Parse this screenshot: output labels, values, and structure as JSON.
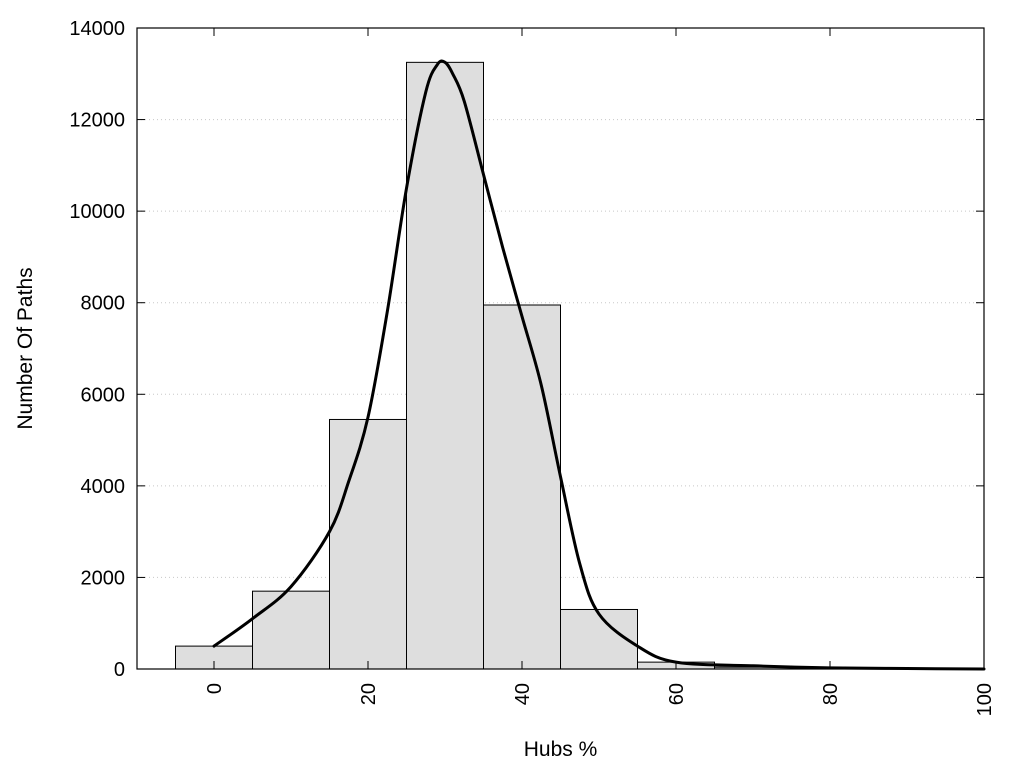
{
  "chart_data": {
    "type": "bar",
    "title": "",
    "xlabel": "Hubs %",
    "ylabel": "Number Of Paths",
    "xlim": [
      -10,
      100
    ],
    "ylim": [
      0,
      14000
    ],
    "grid": {
      "y": true,
      "x": false,
      "style": "dotted"
    },
    "x_ticks": [
      0,
      20,
      40,
      60,
      80,
      100
    ],
    "x_tick_labels": [
      "0",
      "20",
      "40",
      "60",
      "80",
      "100"
    ],
    "y_ticks": [
      0,
      2000,
      4000,
      6000,
      8000,
      10000,
      12000,
      14000
    ],
    "y_tick_labels": [
      "0",
      "2000",
      "4000",
      "6000",
      "8000",
      "10000",
      "12000",
      "14000"
    ],
    "bin_width": 10,
    "bins": [
      {
        "center": 0,
        "count": 500
      },
      {
        "center": 10,
        "count": 1700
      },
      {
        "center": 20,
        "count": 5450
      },
      {
        "center": 30,
        "count": 13250
      },
      {
        "center": 40,
        "count": 7950
      },
      {
        "center": 50,
        "count": 1300
      },
      {
        "center": 60,
        "count": 150
      },
      {
        "center": 70,
        "count": 40
      },
      {
        "center": 80,
        "count": 15
      },
      {
        "center": 90,
        "count": 5
      }
    ],
    "curve": {
      "type": "line",
      "x": [
        0,
        5,
        10,
        15,
        17.5,
        20,
        22.5,
        25,
        27.5,
        29,
        30,
        31,
        32.5,
        35,
        37.5,
        40,
        42.5,
        45,
        47.5,
        50,
        55,
        60,
        70,
        80,
        90,
        100
      ],
      "y": [
        500,
        1100,
        1800,
        3000,
        4100,
        5500,
        7800,
        10500,
        12600,
        13200,
        13250,
        13000,
        12400,
        10800,
        9200,
        7700,
        6200,
        4200,
        2300,
        1200,
        500,
        150,
        70,
        25,
        10,
        0
      ]
    },
    "colors": {
      "bar_fill": "#dedede",
      "bar_stroke": "#000000",
      "curve": "#000000",
      "grid": "#c8c8c8"
    }
  }
}
